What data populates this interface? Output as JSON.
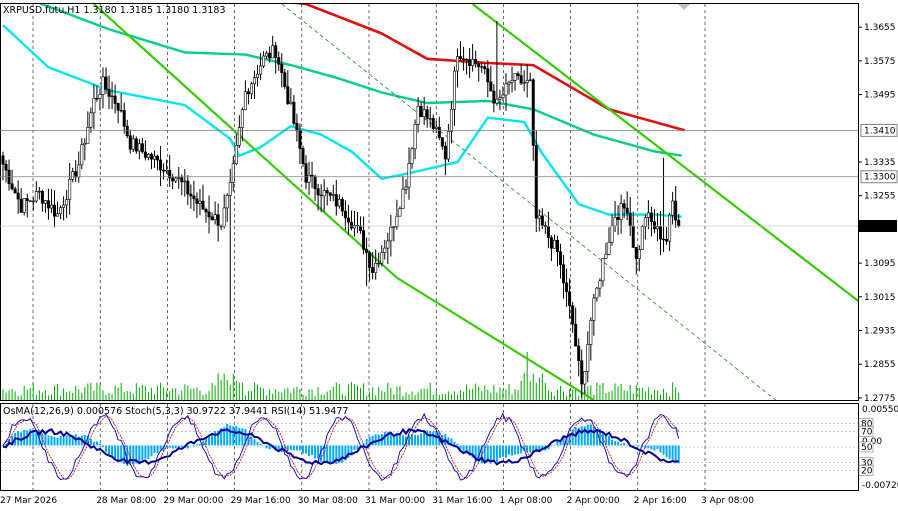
{
  "header": {
    "main": "XRPUSD.futu,H1  1.3180 1.3185 1.3180 1.3183",
    "indicator": "OsMA(12,26,9) 0.000576  Stoch(5,3,3) 30.9722 37.9441  RSI(14) 51.9477"
  },
  "colors": {
    "up_candle": "#000000",
    "down_candle": "#000000",
    "volume": "#00aa00",
    "ma_fast": "#00e5ee",
    "ma_mid": "#00d084",
    "ma_slow": "#e01010",
    "channel": "#33cc00",
    "trend_dashed": "#1a8a1a",
    "osma": "#00aaff",
    "rsi": "#000099",
    "stoch_main": "#0000cc",
    "stoch_signal": "#cc0000",
    "grid": "#000000"
  },
  "chart_data": [
    {
      "type": "candlestick",
      "title": "XRPUSD.futu,H1",
      "ohlc_last": {
        "open": 1.318,
        "high": 1.3185,
        "low": 1.318,
        "close": 1.3183
      },
      "yaxis_ticks": [
        "1.3655",
        "1.3575",
        "1.3495",
        "1.3335",
        "1.3255",
        "1.3095",
        "1.3015",
        "1.2935",
        "1.2855",
        "1.2775"
      ],
      "ylim": [
        1.277,
        1.371
      ],
      "price_labels": [
        {
          "value": 1.341,
          "text": "1.3410",
          "style": "outline"
        },
        {
          "value": 1.33,
          "text": "1.3300",
          "style": "outline"
        },
        {
          "value": 1.3183,
          "text": "1.3183",
          "style": "current"
        }
      ],
      "xaxis_ticks": [
        "27 Mar 2026",
        "28 Mar 08:00",
        "29 Mar 00:00",
        "29 Mar 16:00",
        "30 Mar 08:00",
        "31 Mar 00:00",
        "31 Mar 16:00",
        "1 Apr 08:00",
        "2 Apr 00:00",
        "2 Apr 16:00",
        "3 Apr 08:00"
      ],
      "bars": 224,
      "series": [
        {
          "kind": "ema_fast",
          "values": [
            [
              0,
              1.366
            ],
            [
              15,
              1.356
            ],
            [
              35,
              1.3505
            ],
            [
              60,
              1.347
            ],
            [
              75,
              1.339
            ],
            [
              78,
              1.335
            ],
            [
              85,
              1.337
            ],
            [
              95,
              1.342
            ],
            [
              105,
              1.34
            ],
            [
              115,
              1.336
            ],
            [
              125,
              1.3295
            ],
            [
              135,
              1.331
            ],
            [
              150,
              1.3335
            ],
            [
              160,
              1.344
            ],
            [
              172,
              1.343
            ],
            [
              178,
              1.3355
            ],
            [
              190,
              1.3235
            ],
            [
              200,
              1.321
            ],
            [
              215,
              1.321
            ],
            [
              224,
              1.3205
            ]
          ]
        },
        {
          "kind": "ema_mid",
          "values": [
            [
              0,
              1.3745
            ],
            [
              35,
              1.365
            ],
            [
              60,
              1.3595
            ],
            [
              80,
              1.359
            ],
            [
              95,
              1.3565
            ],
            [
              110,
              1.3535
            ],
            [
              125,
              1.35
            ],
            [
              140,
              1.3475
            ],
            [
              160,
              1.348
            ],
            [
              175,
              1.346
            ],
            [
              195,
              1.34
            ],
            [
              215,
              1.336
            ],
            [
              224,
              1.335
            ]
          ]
        },
        {
          "kind": "ema_slow",
          "values": [
            [
              75,
              1.373
            ],
            [
              100,
              1.371
            ],
            [
              125,
              1.364
            ],
            [
              140,
              1.358
            ],
            [
              160,
              1.357
            ],
            [
              175,
              1.3565
            ],
            [
              200,
              1.346
            ],
            [
              225,
              1.341
            ]
          ]
        },
        {
          "kind": "channel_line",
          "values": [
            [
              30,
              1.371
            ],
            [
              130,
              1.306
            ],
            [
              195,
              1.277
            ]
          ]
        },
        {
          "kind": "channel_line",
          "values": [
            [
              155,
              1.371
            ],
            [
              285,
              1.299
            ]
          ]
        },
        {
          "kind": "dashed_trend",
          "values": [
            [
              92,
              1.371
            ],
            [
              255,
              1.277
            ]
          ]
        }
      ]
    },
    {
      "type": "oscillator",
      "title": "OsMA(12,26,9) 0.000576  Stoch(5,3,3) 30.9722 37.9441  RSI(14) 51.9477",
      "yaxis_ticks": [
        "0.005501",
        "0.00",
        "-0.00726"
      ],
      "level_labels": [
        "80",
        "70",
        "50",
        "30",
        "20"
      ],
      "series": [
        {
          "name": "OsMA",
          "current": 0.000576
        },
        {
          "name": "Stoch main",
          "current": 30.9722
        },
        {
          "name": "Stoch signal",
          "current": 37.9441
        },
        {
          "name": "RSI",
          "current": 51.9477
        }
      ]
    }
  ]
}
